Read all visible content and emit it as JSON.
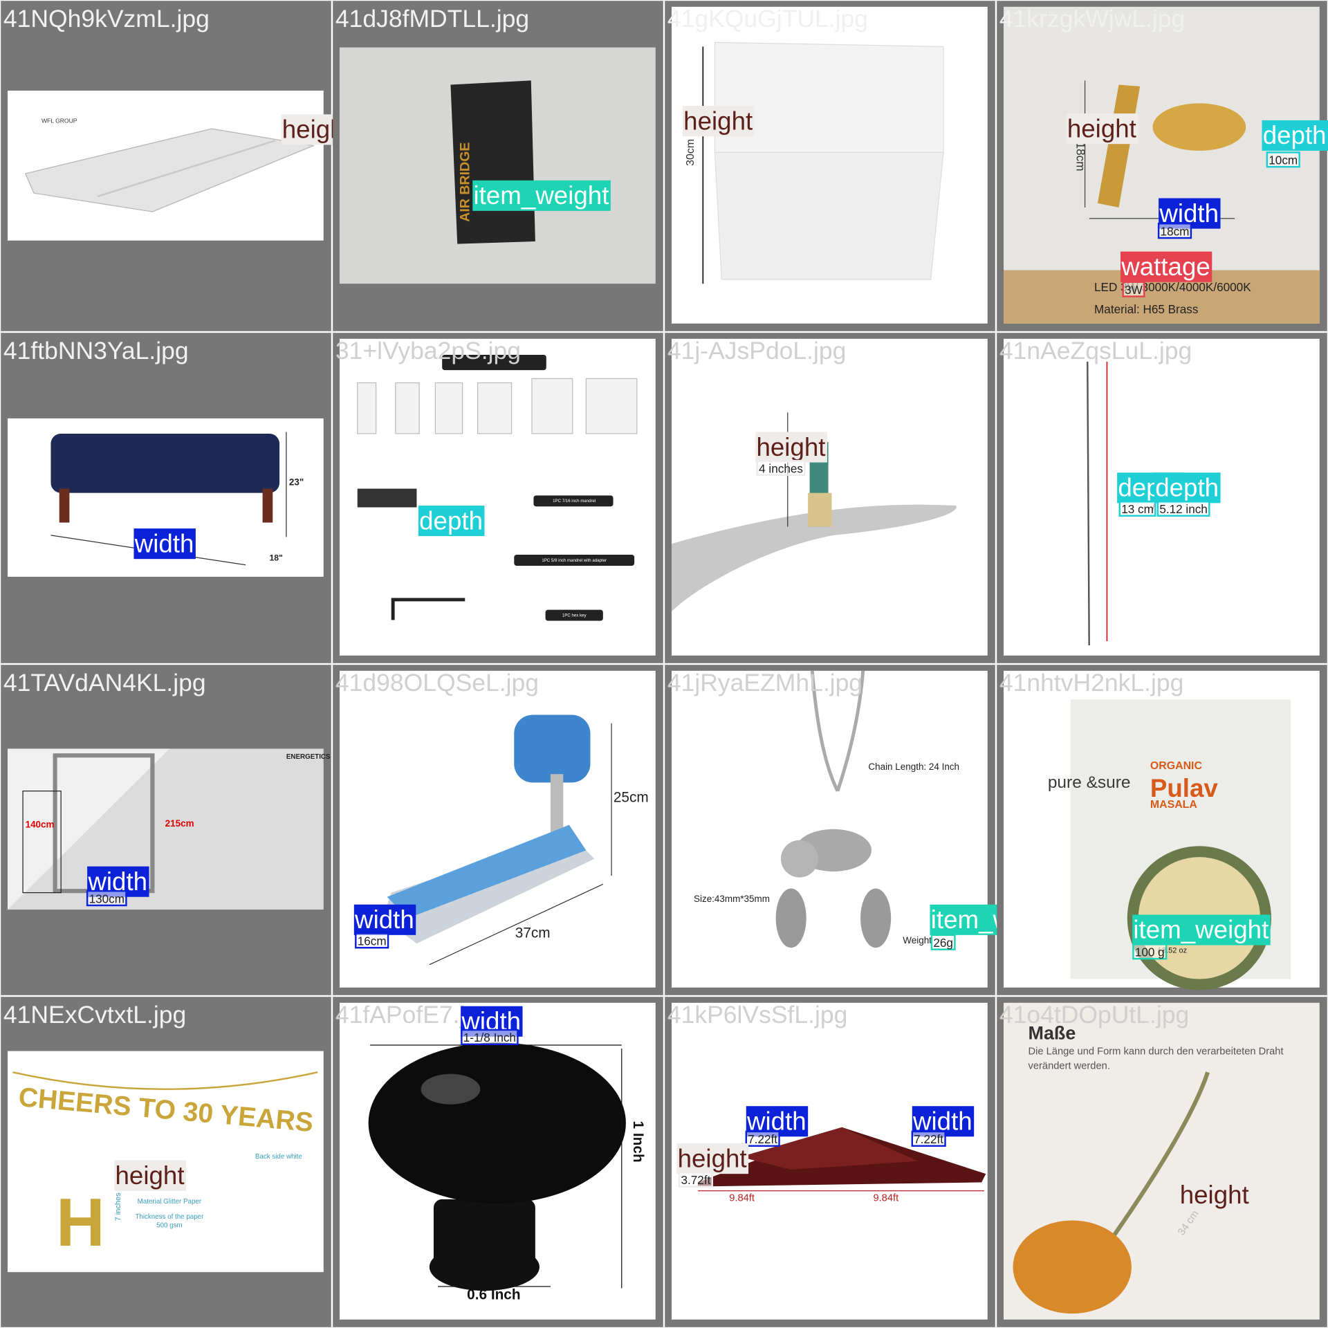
{
  "tiles": [
    {
      "filename": "41NQh9kVzmL.jpg",
      "annotations": [
        {
          "label": "height"
        }
      ],
      "texts": [
        "WFL GROUP"
      ]
    },
    {
      "filename": "41dJ8fMDTLL.jpg",
      "annotations": [
        {
          "label": "item_weight"
        }
      ],
      "texts": [
        "AIR BRIDGE"
      ]
    },
    {
      "filename": "41gKQuGjTUL.jpg",
      "annotations": [
        {
          "label": "height"
        }
      ],
      "texts": [
        "30cm"
      ]
    },
    {
      "filename": "41krzgkWjwL.jpg",
      "annotations": [
        {
          "label": "height"
        },
        {
          "label": "depth",
          "value": "10cm"
        },
        {
          "label": "width",
          "value": "18cm"
        },
        {
          "label": "wattage",
          "value": "3W"
        }
      ],
      "texts": [
        "18cm",
        "LED 3W 3000K/4000K/6000K",
        "Material: H65 Brass"
      ]
    },
    {
      "filename": "41ftbNN3YaL.jpg",
      "annotations": [
        {
          "label": "width"
        }
      ],
      "texts": [
        "23\"",
        "18\""
      ]
    },
    {
      "filename": "31+lVyba2pS.jpg",
      "annotations": [
        {
          "label": "depth"
        }
      ],
      "texts": [
        "1PC 7/16 inch mandrel",
        "1PC 5/8 inch mandrel with adapter",
        "1PC hex key"
      ]
    },
    {
      "filename": "41j-AJsPdoL.jpg",
      "annotations": [
        {
          "label": "height",
          "value": "4 inches"
        }
      ],
      "texts": []
    },
    {
      "filename": "41nAeZqsLuL.jpg",
      "annotations": [
        {
          "label": "depth",
          "value": "13 cm"
        },
        {
          "label": "depth",
          "value": "5.12 inch"
        }
      ],
      "texts": [
        "/"
      ]
    },
    {
      "filename": "41TAVdAN4KL.jpg",
      "annotations": [
        {
          "label": "width",
          "value": "130cm"
        }
      ],
      "texts": [
        "140cm",
        "215cm",
        "ENERGETICS"
      ]
    },
    {
      "filename": "41d98OLQSeL.jpg",
      "annotations": [
        {
          "label": "width",
          "value": "16cm"
        }
      ],
      "texts": [
        "25cm",
        "37cm"
      ]
    },
    {
      "filename": "41jRyaEZMhL.jpg",
      "annotations": [
        {
          "label": "item_weight",
          "value": "26g"
        }
      ],
      "texts": [
        "Chain Length: 24 Inch",
        "Size:43mm*35mm",
        "Weight"
      ]
    },
    {
      "filename": "41nhtvH2nkL.jpg",
      "annotations": [
        {
          "label": "item_weight",
          "value": "100 g"
        }
      ],
      "texts": [
        "ORGANIC",
        "Pulav",
        "MASALA",
        "pure &sure",
        "/ 3.52 oz"
      ]
    },
    {
      "filename": "41NExCvtxtL.jpg",
      "annotations": [
        {
          "label": "height"
        }
      ],
      "texts": [
        "CHEERS TO 30 YEARS",
        "H",
        "7 inches",
        "Back side white",
        "Material Glitter Paper",
        "Thickness of the paper",
        "500 gsm"
      ]
    },
    {
      "filename": "41fAPofE7.jpg",
      "annotations": [
        {
          "label": "width",
          "value": "1-1/8 Inch"
        }
      ],
      "texts": [
        "1 Inch",
        "0.6 Inch"
      ]
    },
    {
      "filename": "41kP6lVsSfL.jpg",
      "annotations": [
        {
          "label": "width",
          "value": "7.22ft"
        },
        {
          "label": "width",
          "value": "7.22ft"
        },
        {
          "label": "height",
          "value": "3.72ft"
        }
      ],
      "texts": [
        "9.84ft",
        "9.84ft"
      ]
    },
    {
      "filename": "41o4tDOpUtL.jpg",
      "annotations": [
        {
          "label": "height"
        }
      ],
      "texts": [
        "Maße",
        "Die Länge und Form kann durch den verarbeiteten Draht",
        "verändert werden.",
        "34 cm"
      ]
    }
  ]
}
